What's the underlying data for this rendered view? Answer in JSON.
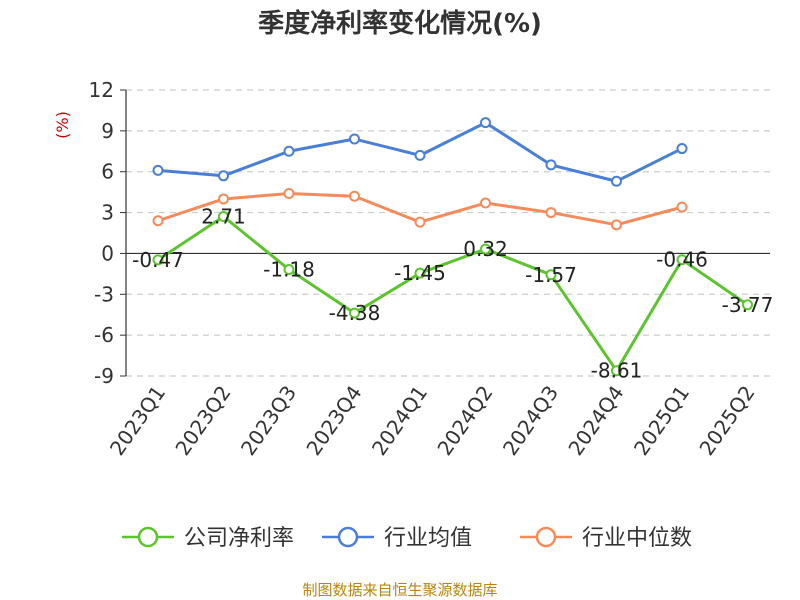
{
  "chart_data": {
    "type": "line",
    "title": "季度净利率变化情况(%)",
    "unit_label": "(%)",
    "categories": [
      "2023Q1",
      "2023Q2",
      "2023Q3",
      "2023Q4",
      "2024Q1",
      "2024Q2",
      "2024Q3",
      "2024Q4",
      "2025Q1",
      "2025Q2"
    ],
    "ylim": [
      -9,
      12
    ],
    "yticks": [
      -9,
      -6,
      -3,
      0,
      3,
      6,
      9,
      12
    ],
    "grid": true,
    "legend_position": "bottom",
    "series": [
      {
        "name": "公司净利率",
        "color": "#5cc42e",
        "values": [
          -0.47,
          2.71,
          -1.18,
          -4.38,
          -1.45,
          0.32,
          -1.57,
          -8.61,
          -0.46,
          -3.77
        ],
        "data_labels": [
          "-0.47",
          "2.71",
          "-1.18",
          "-4.38",
          "-1.45",
          "0.32",
          "-1.57",
          "-8.61",
          "-0.46",
          "-3.77"
        ]
      },
      {
        "name": "行业均值",
        "color": "#4a7fd8",
        "values": [
          6.1,
          5.7,
          7.5,
          8.4,
          7.2,
          9.6,
          6.5,
          5.3,
          7.7,
          null
        ]
      },
      {
        "name": "行业中位数",
        "color": "#f58b5b",
        "values": [
          2.4,
          4.0,
          4.4,
          4.2,
          2.3,
          3.7,
          3.0,
          2.1,
          3.4,
          null
        ]
      }
    ]
  },
  "source_text": "制图数据来自恒生聚源数据库"
}
